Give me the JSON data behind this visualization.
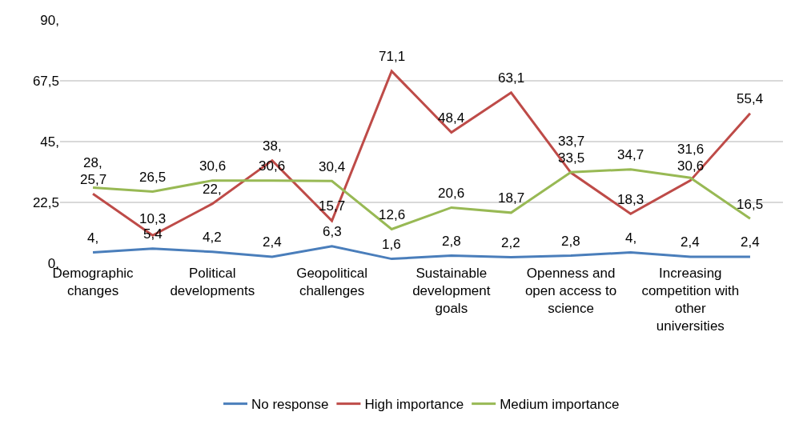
{
  "chart_data": {
    "type": "line",
    "categories": [
      "Demographic changes",
      null,
      "Political developments",
      null,
      "Geopolitical challenges",
      null,
      "Sustainable development goals",
      null,
      "Openness and open access to science",
      null,
      "Increasing competition with other universities",
      null
    ],
    "series": [
      {
        "name": "No response",
        "color": "#4a7ebb",
        "values": [
          4,
          5.4,
          4.2,
          2.4,
          6.3,
          1.6,
          2.8,
          2.2,
          2.8,
          4,
          2.4,
          2.4
        ],
        "value_labels": [
          "4,",
          "5,4",
          "4,2",
          "2,4",
          "6,3",
          "1,6",
          "2,8",
          "2,2",
          "2,8",
          "4,",
          "2,4",
          "2,4"
        ]
      },
      {
        "name": "High importance",
        "color": "#be4b48",
        "values": [
          25.7,
          10.3,
          22,
          38,
          15.7,
          71.1,
          48.4,
          63.1,
          33.5,
          18.3,
          30.6,
          55.4
        ],
        "value_labels": [
          "25,7",
          "10,3",
          "22,",
          "38,",
          "15,7",
          "71,1",
          "48,4",
          "63,1",
          "33,5",
          "18,3",
          "30,6",
          "55,4"
        ]
      },
      {
        "name": "Medium importance",
        "color": "#98b954",
        "values": [
          28,
          26.5,
          30.6,
          30.6,
          30.4,
          12.6,
          20.6,
          18.7,
          33.7,
          34.7,
          31.6,
          16.5
        ],
        "value_labels": [
          "28,",
          "26,5",
          "30,6",
          "30,6",
          "30,4",
          "12,6",
          "20,6",
          "18,7",
          "33,7",
          "34,7",
          "31,6",
          "16,5"
        ]
      }
    ],
    "ylim": [
      0,
      90
    ],
    "yticks": [
      {
        "value": 0,
        "label": "0,"
      },
      {
        "value": 22.5,
        "label": "22,5"
      },
      {
        "value": 45,
        "label": "45,"
      },
      {
        "value": 67.5,
        "label": "67,5"
      },
      {
        "value": 90,
        "label": "90,"
      }
    ],
    "grid": "y",
    "legend": "bottom",
    "marker": "none",
    "line_style": "solid"
  }
}
